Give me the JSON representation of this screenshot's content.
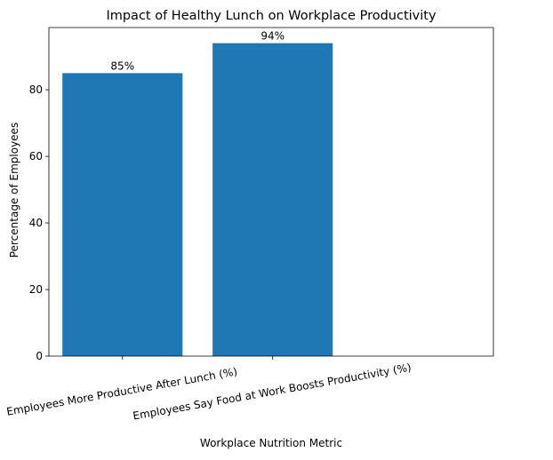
{
  "chart_data": {
    "type": "bar",
    "title": "Impact of Healthy Lunch on Workplace Productivity",
    "x_label": "Workplace Nutrition Metric",
    "y_label": "Percentage of Employees",
    "categories": [
      "Employees More Productive After Lunch (%)",
      "Employees Say Food at Work Boosts Productivity (%)"
    ],
    "values": [
      85,
      94
    ],
    "value_labels": [
      "85%",
      "94%"
    ],
    "color": "#1f77b4",
    "ylim": [
      0,
      98.7
    ],
    "yticks": [
      0,
      20,
      40,
      60,
      80
    ],
    "grid": false
  }
}
